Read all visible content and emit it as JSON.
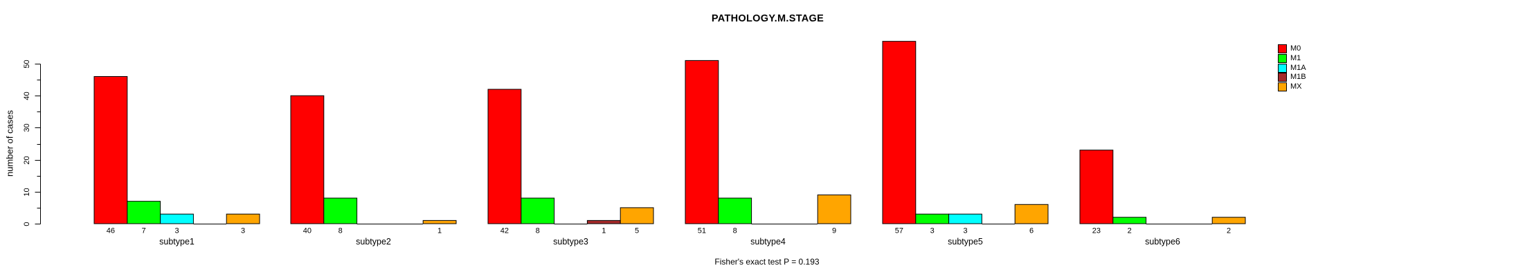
{
  "chart_data": {
    "type": "bar",
    "title": "PATHOLOGY.M.STAGE",
    "xlabel": "",
    "ylabel": "number of cases",
    "annotation": "Fisher's exact test P = 0.193",
    "categories": [
      "subtype1",
      "subtype2",
      "subtype3",
      "subtype4",
      "subtype5",
      "subtype6"
    ],
    "series": [
      {
        "name": "M0",
        "color": "#FF0000",
        "values": [
          46,
          40,
          42,
          51,
          57,
          23
        ]
      },
      {
        "name": "M1",
        "color": "#00FF00",
        "values": [
          7,
          8,
          8,
          8,
          3,
          2
        ]
      },
      {
        "name": "M1A",
        "color": "#00FFFF",
        "values": [
          3,
          0,
          0,
          0,
          3,
          0
        ]
      },
      {
        "name": "M1B",
        "color": "#A52A2A",
        "values": [
          0,
          0,
          1,
          0,
          0,
          0
        ]
      },
      {
        "name": "MX",
        "color": "#FFA500",
        "values": [
          3,
          1,
          5,
          9,
          6,
          2
        ]
      }
    ],
    "bar_value_labels": [
      [
        "46",
        "7",
        "3",
        "",
        "3"
      ],
      [
        "40",
        "8",
        "",
        "",
        "1"
      ],
      [
        "42",
        "8",
        "",
        "1",
        "5"
      ],
      [
        "51",
        "8",
        "",
        "",
        "9"
      ],
      [
        "57",
        "3",
        "3",
        "",
        "6"
      ],
      [
        "23",
        "2",
        "",
        "",
        "2"
      ]
    ],
    "ylim": [
      0,
      57
    ],
    "yticks": [
      0,
      10,
      20,
      30,
      40,
      50
    ],
    "minor_yticks": [
      5,
      15,
      25,
      35,
      45
    ],
    "grid": false,
    "legend_position": "top-right",
    "legend_entries": [
      "M0",
      "M1",
      "M1A",
      "M1B",
      "MX"
    ],
    "axis_color": "#000000",
    "background_color": "#FFFFFF"
  }
}
